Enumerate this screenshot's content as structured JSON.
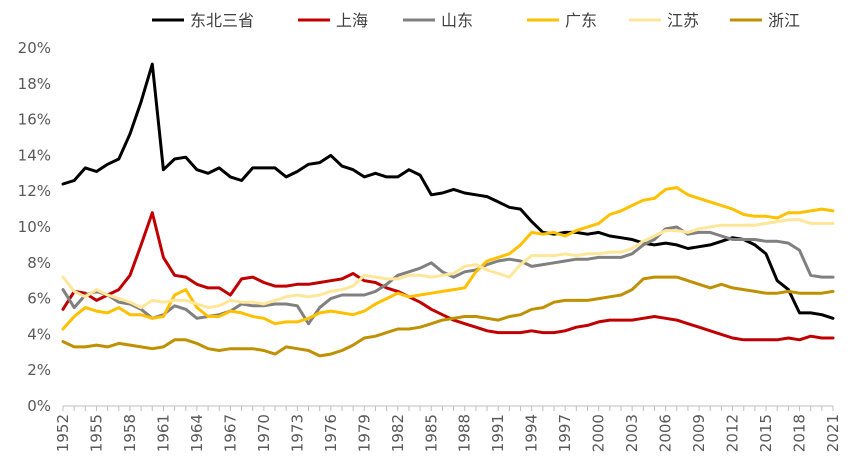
{
  "chart_data": {
    "type": "line",
    "title": "",
    "xlabel": "",
    "ylabel": "",
    "ylim": [
      0,
      20
    ],
    "xlim": [
      1952,
      2021
    ],
    "grid": false,
    "legend_position": "top",
    "y_ticks": [
      "0%",
      "2%",
      "4%",
      "6%",
      "8%",
      "10%",
      "12%",
      "14%",
      "16%",
      "18%",
      "20%"
    ],
    "x_ticks": [
      "1952",
      "1955",
      "1958",
      "1961",
      "1964",
      "1967",
      "1970",
      "1973",
      "1976",
      "1979",
      "1982",
      "1985",
      "1988",
      "1991",
      "1994",
      "1997",
      "2000",
      "2003",
      "2006",
      "2009",
      "2012",
      "2015",
      "2018",
      "2021"
    ],
    "x": [
      1952,
      1953,
      1954,
      1955,
      1956,
      1957,
      1958,
      1959,
      1960,
      1961,
      1962,
      1963,
      1964,
      1965,
      1966,
      1967,
      1968,
      1969,
      1970,
      1971,
      1972,
      1973,
      1974,
      1975,
      1976,
      1977,
      1978,
      1979,
      1980,
      1981,
      1982,
      1983,
      1984,
      1985,
      1986,
      1987,
      1988,
      1989,
      1990,
      1991,
      1992,
      1993,
      1994,
      1995,
      1996,
      1997,
      1998,
      1999,
      2000,
      2001,
      2002,
      2003,
      2004,
      2005,
      2006,
      2007,
      2008,
      2009,
      2010,
      2011,
      2012,
      2013,
      2014,
      2015,
      2016,
      2017,
      2018,
      2019,
      2020,
      2021
    ],
    "series": [
      {
        "name": "东北三省",
        "color": "#000000",
        "values": [
          12.4,
          12.6,
          13.3,
          13.1,
          13.5,
          13.8,
          15.2,
          17.0,
          19.1,
          13.2,
          13.8,
          13.9,
          13.2,
          13.0,
          13.3,
          12.8,
          12.6,
          13.3,
          13.3,
          13.3,
          12.8,
          13.1,
          13.5,
          13.6,
          14.0,
          13.4,
          13.2,
          12.8,
          13.0,
          12.8,
          12.8,
          13.2,
          12.9,
          11.8,
          11.9,
          12.1,
          11.9,
          11.8,
          11.7,
          11.4,
          11.1,
          11.0,
          10.3,
          9.7,
          9.6,
          9.7,
          9.7,
          9.6,
          9.7,
          9.5,
          9.4,
          9.3,
          9.1,
          9.0,
          9.1,
          9.0,
          8.8,
          8.9,
          9.0,
          9.2,
          9.4,
          9.3,
          9.0,
          8.5,
          7.0,
          6.5,
          5.2,
          5.2,
          5.1,
          4.9
        ]
      },
      {
        "name": "上海",
        "color": "#c00000",
        "values": [
          5.4,
          6.4,
          6.3,
          5.9,
          6.2,
          6.5,
          7.3,
          9.0,
          10.8,
          8.3,
          7.3,
          7.2,
          6.8,
          6.6,
          6.6,
          6.2,
          7.1,
          7.2,
          6.9,
          6.7,
          6.7,
          6.8,
          6.8,
          6.9,
          7.0,
          7.1,
          7.4,
          7.0,
          6.9,
          6.6,
          6.4,
          6.1,
          5.8,
          5.4,
          5.1,
          4.8,
          4.6,
          4.4,
          4.2,
          4.1,
          4.1,
          4.1,
          4.2,
          4.1,
          4.1,
          4.2,
          4.4,
          4.5,
          4.7,
          4.8,
          4.8,
          4.8,
          4.9,
          5.0,
          4.9,
          4.8,
          4.6,
          4.4,
          4.2,
          4.0,
          3.8,
          3.7,
          3.7,
          3.7,
          3.7,
          3.8,
          3.7,
          3.9,
          3.8,
          3.8
        ]
      },
      {
        "name": "山东",
        "color": "#808080",
        "values": [
          6.5,
          5.5,
          6.2,
          6.4,
          6.2,
          5.8,
          5.7,
          5.4,
          4.9,
          5.1,
          5.6,
          5.4,
          4.9,
          5.0,
          5.1,
          5.3,
          5.7,
          5.6,
          5.6,
          5.7,
          5.7,
          5.6,
          4.6,
          5.5,
          6.0,
          6.2,
          6.2,
          6.2,
          6.4,
          6.8,
          7.3,
          7.5,
          7.7,
          8.0,
          7.5,
          7.2,
          7.5,
          7.6,
          7.9,
          8.1,
          8.2,
          8.1,
          7.8,
          7.9,
          8.0,
          8.1,
          8.2,
          8.2,
          8.3,
          8.3,
          8.3,
          8.5,
          9.0,
          9.3,
          9.9,
          10.0,
          9.6,
          9.7,
          9.7,
          9.5,
          9.3,
          9.3,
          9.3,
          9.2,
          9.2,
          9.1,
          8.7,
          7.3,
          7.2,
          7.2
        ]
      },
      {
        "name": "广东",
        "color": "#ffc000",
        "values": [
          4.3,
          5.0,
          5.5,
          5.3,
          5.2,
          5.5,
          5.1,
          5.1,
          4.9,
          5.0,
          6.2,
          6.5,
          5.5,
          5.0,
          5.0,
          5.3,
          5.2,
          5.0,
          4.9,
          4.6,
          4.7,
          4.7,
          4.9,
          5.2,
          5.3,
          5.2,
          5.1,
          5.3,
          5.7,
          6.0,
          6.3,
          6.1,
          6.2,
          6.3,
          6.4,
          6.5,
          6.6,
          7.5,
          8.1,
          8.3,
          8.5,
          9.0,
          9.7,
          9.6,
          9.7,
          9.5,
          9.8,
          10.0,
          10.2,
          10.7,
          10.9,
          11.2,
          11.5,
          11.6,
          12.1,
          12.2,
          11.8,
          11.6,
          11.4,
          11.2,
          11.0,
          10.7,
          10.6,
          10.6,
          10.5,
          10.8,
          10.8,
          10.9,
          11.0,
          10.9
        ]
      },
      {
        "name": "江苏",
        "color": "#ffe699",
        "values": [
          7.2,
          6.4,
          6.1,
          6.5,
          6.2,
          6.0,
          5.8,
          5.5,
          5.9,
          5.8,
          5.9,
          5.9,
          5.7,
          5.5,
          5.6,
          5.9,
          5.8,
          5.8,
          5.7,
          5.9,
          6.1,
          6.2,
          6.1,
          6.2,
          6.4,
          6.5,
          6.7,
          7.3,
          7.2,
          7.1,
          7.1,
          7.3,
          7.3,
          7.2,
          7.3,
          7.4,
          7.8,
          7.9,
          7.6,
          7.4,
          7.2,
          7.9,
          8.4,
          8.4,
          8.4,
          8.5,
          8.4,
          8.5,
          8.5,
          8.6,
          8.6,
          8.8,
          9.2,
          9.5,
          9.8,
          9.8,
          9.7,
          9.9,
          10.0,
          10.1,
          10.1,
          10.1,
          10.1,
          10.2,
          10.3,
          10.4,
          10.4,
          10.2,
          10.2,
          10.2
        ]
      },
      {
        "name": "浙江",
        "color": "#bf9000",
        "values": [
          3.6,
          3.3,
          3.3,
          3.4,
          3.3,
          3.5,
          3.4,
          3.3,
          3.2,
          3.3,
          3.7,
          3.7,
          3.5,
          3.2,
          3.1,
          3.2,
          3.2,
          3.2,
          3.1,
          2.9,
          3.3,
          3.2,
          3.1,
          2.8,
          2.9,
          3.1,
          3.4,
          3.8,
          3.9,
          4.1,
          4.3,
          4.3,
          4.4,
          4.6,
          4.8,
          4.9,
          5.0,
          5.0,
          4.9,
          4.8,
          5.0,
          5.1,
          5.4,
          5.5,
          5.8,
          5.9,
          5.9,
          5.9,
          6.0,
          6.1,
          6.2,
          6.5,
          7.1,
          7.2,
          7.2,
          7.2,
          7.0,
          6.8,
          6.6,
          6.8,
          6.6,
          6.5,
          6.4,
          6.3,
          6.3,
          6.4,
          6.3,
          6.3,
          6.3,
          6.4
        ]
      }
    ]
  }
}
